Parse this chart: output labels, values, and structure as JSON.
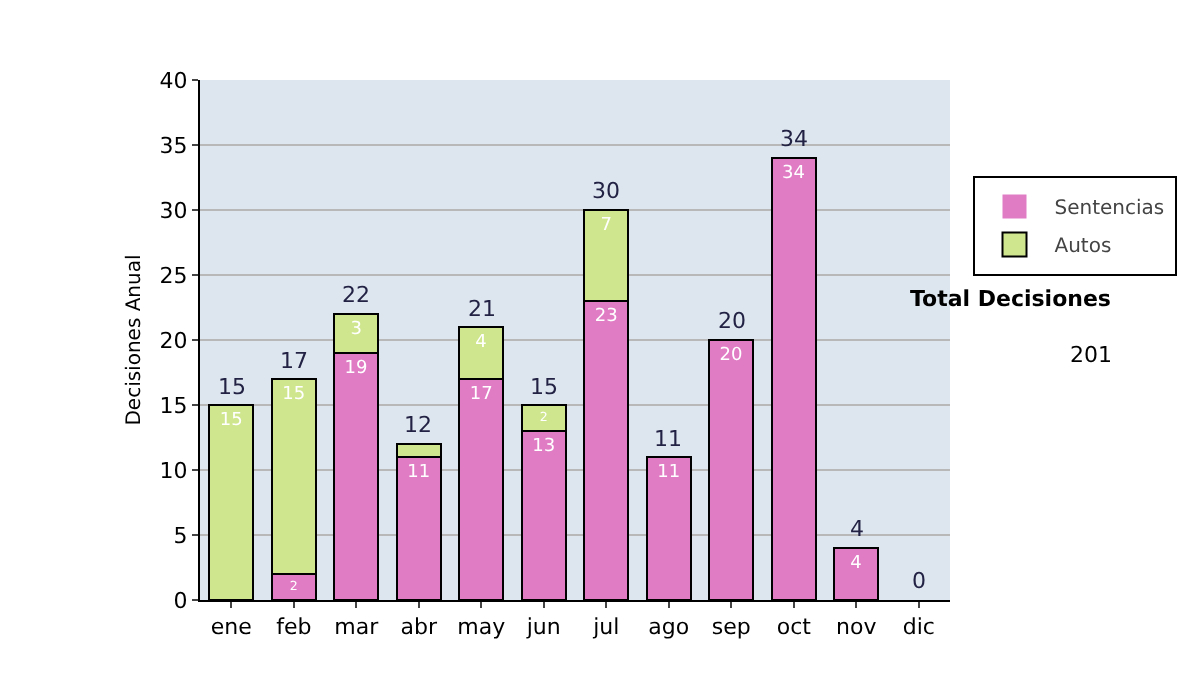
{
  "chart_data": {
    "type": "bar",
    "stacked": true,
    "ylabel": "Decisiones Anual",
    "categories": [
      "ene",
      "feb",
      "mar",
      "abr",
      "may",
      "jun",
      "jul",
      "ago",
      "sep",
      "oct",
      "nov",
      "dic"
    ],
    "series": [
      {
        "name": "Sentencias",
        "color": "#e07cc4",
        "values": [
          0,
          2,
          19,
          11,
          17,
          13,
          23,
          11,
          20,
          34,
          4,
          0
        ],
        "value_labels": [
          null,
          "2",
          "19",
          "11",
          "17",
          "13",
          "23",
          "11",
          "20",
          "34",
          "4",
          null
        ]
      },
      {
        "name": "Autos",
        "color": "#cfe68e",
        "values": [
          15,
          15,
          3,
          1,
          4,
          2,
          7,
          0,
          0,
          0,
          0,
          0
        ],
        "value_labels": [
          "15",
          "15",
          "3",
          null,
          "4",
          "2",
          "7",
          null,
          null,
          null,
          null,
          null
        ]
      }
    ],
    "totals": [
      "15",
      "17",
      "22",
      "12",
      "21",
      "15",
      "30",
      "11",
      "20",
      "34",
      "4",
      "0"
    ],
    "ylim": [
      0,
      40
    ],
    "yticks": [
      0,
      5,
      10,
      15,
      20,
      25,
      30,
      35,
      40
    ],
    "grid": "y",
    "legend": "right",
    "annotations": [
      "Total Decisiones",
      "201"
    ]
  }
}
